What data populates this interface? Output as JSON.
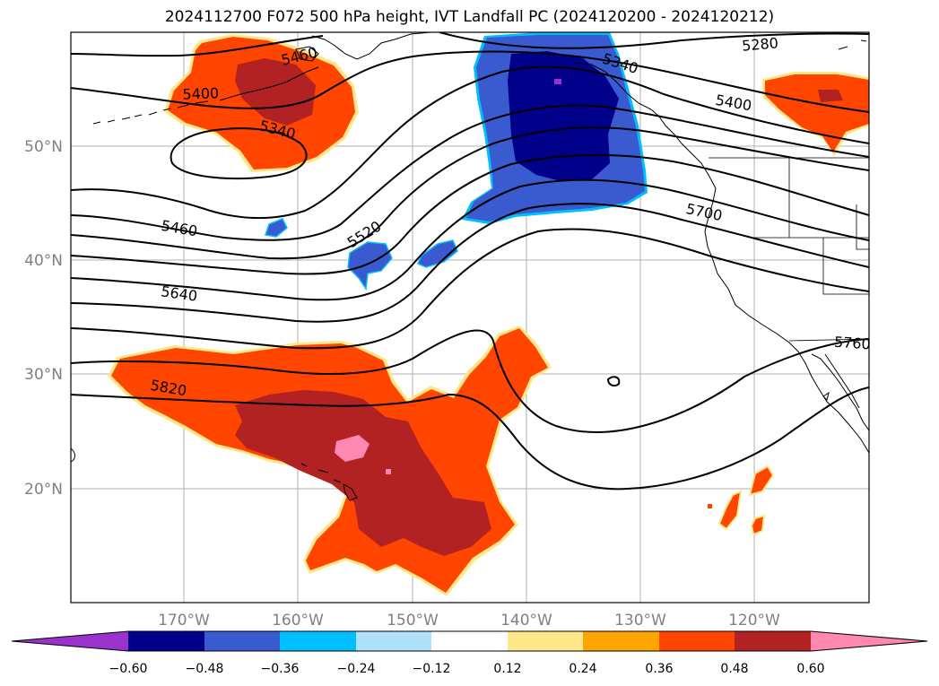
{
  "title": "2024112700 F072 500 hPa height, IVT Landfall PC (2024120200 - 2024120212)",
  "lat_labels": [
    "50°N",
    "40°N",
    "30°N",
    "20°N"
  ],
  "lon_labels": [
    "170°W",
    "160°W",
    "150°W",
    "140°W",
    "130°W",
    "120°W"
  ],
  "contour_labels": [
    "5280",
    "5340",
    "5400",
    "5460",
    "5520",
    "5640",
    "5700",
    "5760",
    "5820"
  ],
  "colorbar": {
    "ticks": [
      "−0.60",
      "−0.48",
      "−0.36",
      "−0.24",
      "−0.12",
      "0.12",
      "0.24",
      "0.36",
      "0.48",
      "0.60"
    ],
    "colors": [
      "#9933cc",
      "#00008b",
      "#3a5bcf",
      "#00bfff",
      "#aee0fa",
      "#ffffff",
      "#ffe88a",
      "#ffa500",
      "#ff4500",
      "#b22222",
      "#ff88b0"
    ]
  }
}
